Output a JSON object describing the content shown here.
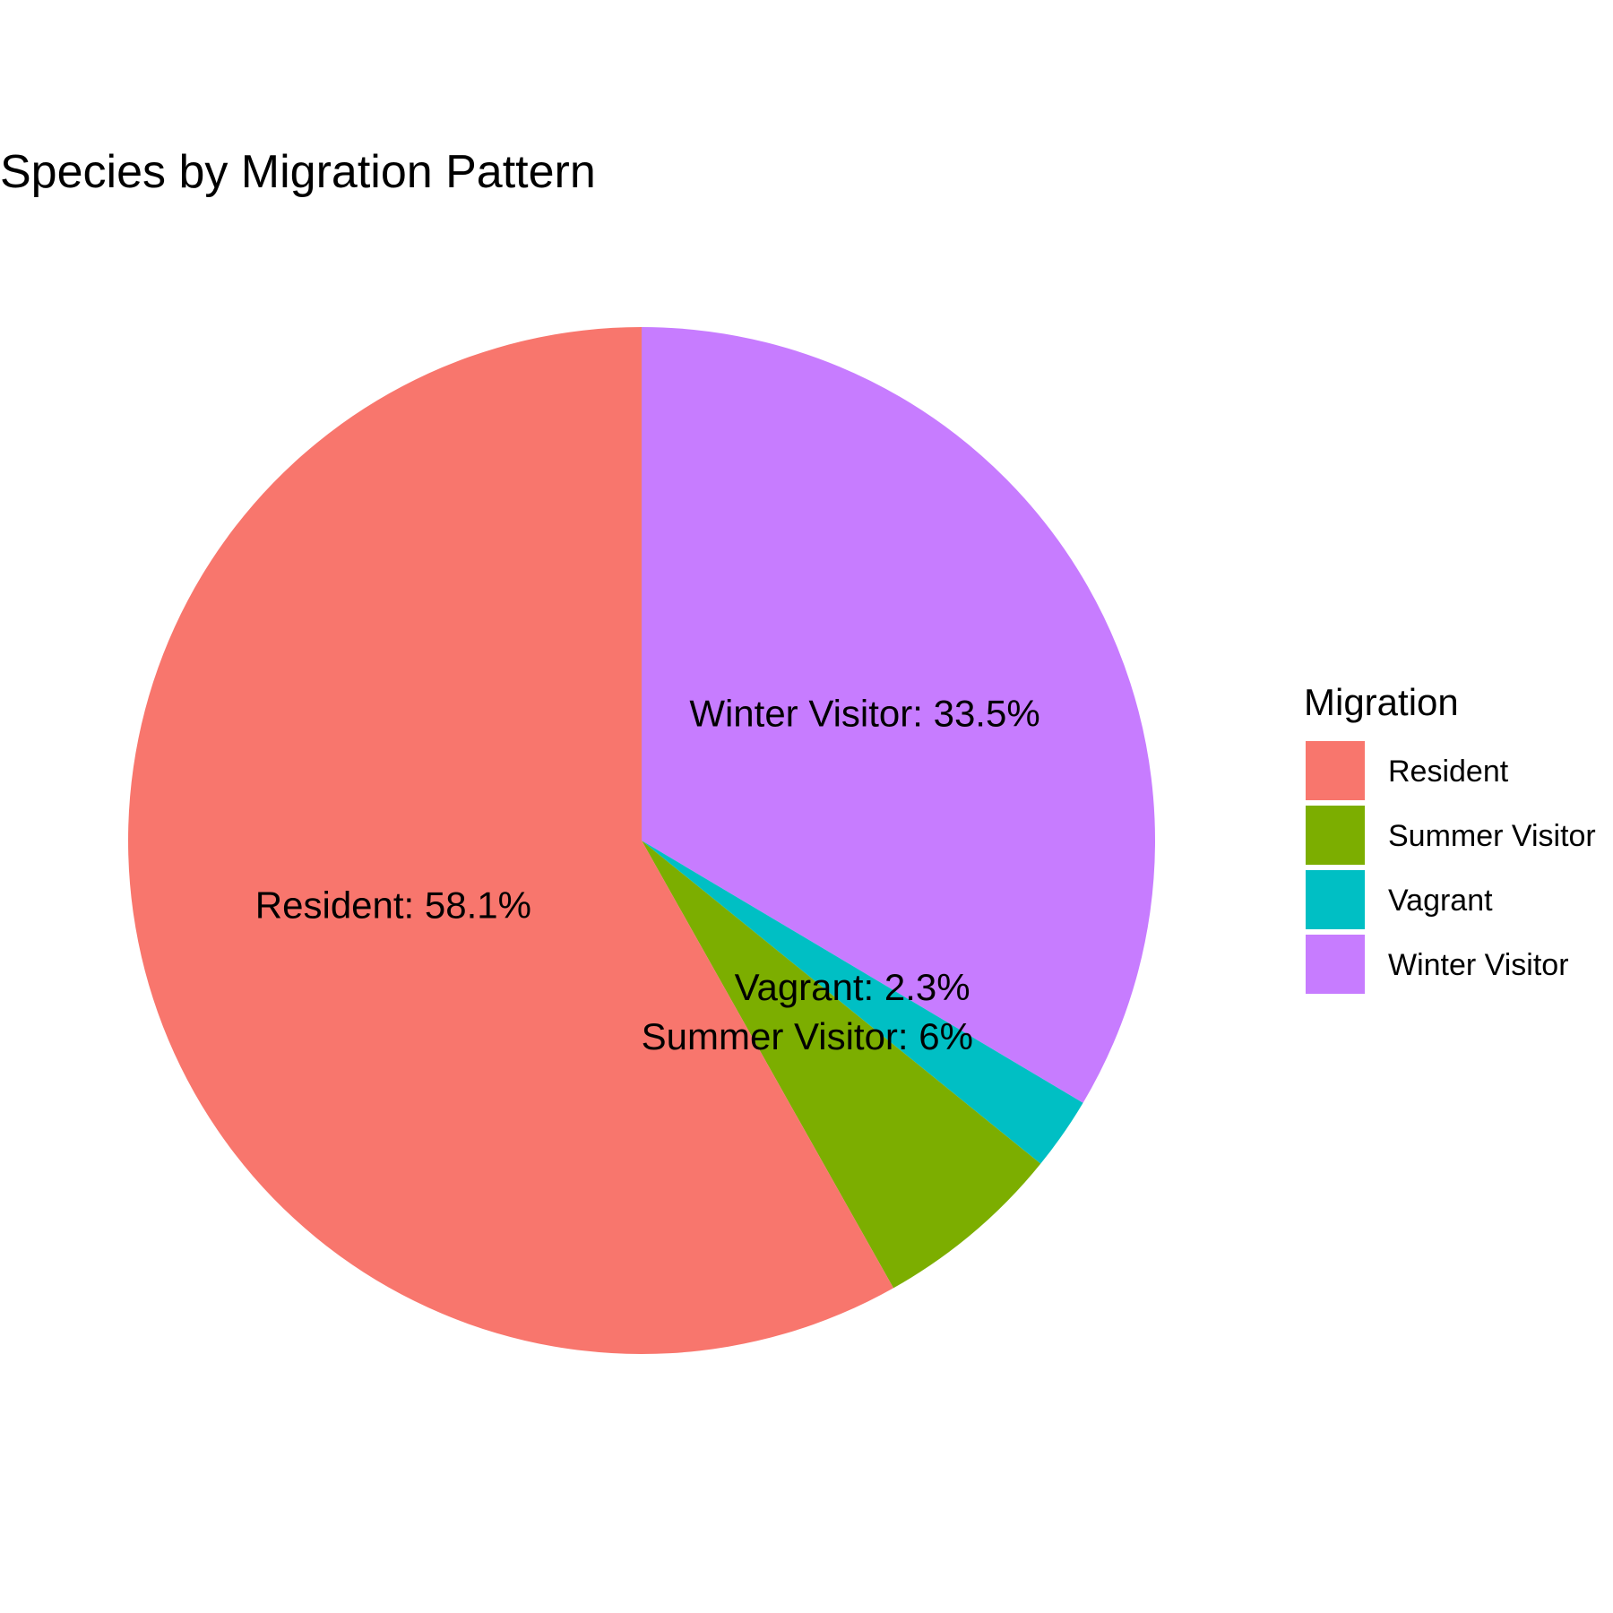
{
  "chart_data": {
    "type": "pie",
    "title": "Species by Migration Pattern",
    "legend": {
      "title": "Migration",
      "position": "right"
    },
    "slices": [
      {
        "category": "Resident",
        "value": 58.1,
        "label": "Resident: 58.1%",
        "color": "#F8766D"
      },
      {
        "category": "Summer Visitor",
        "value": 6,
        "label": "Summer Visitor: 6%",
        "color": "#7CAE00"
      },
      {
        "category": "Vagrant",
        "value": 2.3,
        "label": "Vagrant: 2.3%",
        "color": "#00BFC4"
      },
      {
        "category": "Winter Visitor",
        "value": 33.5,
        "label": "Winter Visitor: 33.5%",
        "color": "#C77CFF"
      }
    ]
  }
}
